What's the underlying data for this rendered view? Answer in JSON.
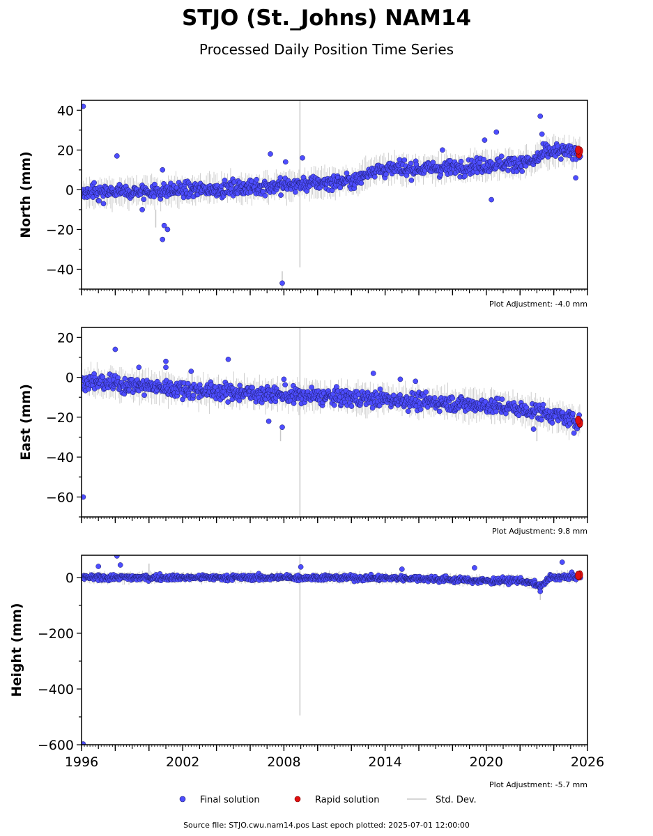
{
  "page": {
    "title": "STJO (St._Johns) NAM14",
    "subtitle": "Processed Daily Position Time Series",
    "footer": "Source file: STJO.cwu.nam14.pos  Last epoch plotted: 2025-07-01 12:00:00"
  },
  "legend": {
    "final_label": "Final solution",
    "rapid_label": "Rapid solution",
    "std_label": "Std. Dev."
  },
  "colors": {
    "final": "#4d4dff",
    "final_edge": "#1a1a66",
    "rapid": "#e01010",
    "std": "#c8c8c8"
  },
  "chart_data": [
    {
      "type": "scatter",
      "name": "north",
      "ylabel": "North (mm)",
      "xlim": [
        1996,
        2026
      ],
      "ylim": [
        -50,
        45
      ],
      "yticks": [
        -40,
        -20,
        0,
        20,
        40
      ],
      "adjustment": "Plot Adjustment: -4.0 mm",
      "trend": [
        [
          1996,
          -2
        ],
        [
          2003,
          0
        ],
        [
          2008,
          2
        ],
        [
          2012.4,
          5
        ],
        [
          2013.2,
          10
        ],
        [
          2018,
          11
        ],
        [
          2022.8,
          14
        ],
        [
          2023.5,
          19
        ],
        [
          2025.5,
          19
        ]
      ],
      "scatter": 2.6,
      "outliers": [
        [
          1996.1,
          42
        ],
        [
          1997.3,
          -7
        ],
        [
          1998.1,
          17
        ],
        [
          1999.6,
          -10
        ],
        [
          2000.8,
          -25
        ],
        [
          2000.9,
          -18
        ],
        [
          2001.1,
          -20
        ],
        [
          2000.8,
          10
        ],
        [
          2007.2,
          18
        ],
        [
          2007.9,
          -47
        ],
        [
          2008.1,
          14
        ],
        [
          2009.1,
          16
        ],
        [
          2017.4,
          20
        ],
        [
          2019.9,
          25
        ],
        [
          2020.6,
          29
        ],
        [
          2020.3,
          -5
        ],
        [
          2023.2,
          37
        ],
        [
          2023.3,
          28
        ],
        [
          2025.3,
          6
        ]
      ],
      "spikes": [
        [
          2008.95,
          -39,
          45
        ],
        [
          2000.4,
          -19,
          -10
        ],
        [
          2007.9,
          -41,
          -52
        ]
      ],
      "rapid": [
        [
          2025.5,
          18
        ],
        [
          2025.55,
          19.5
        ],
        [
          2025.45,
          20
        ]
      ]
    },
    {
      "type": "scatter",
      "name": "east",
      "ylabel": "East (mm)",
      "xlim": [
        1996,
        2026
      ],
      "ylim": [
        -70,
        25
      ],
      "yticks": [
        -60,
        -40,
        -20,
        0,
        20
      ],
      "adjustment": "Plot Adjustment: 9.8 mm",
      "trend": [
        [
          1996,
          -2
        ],
        [
          2002,
          -6
        ],
        [
          2008,
          -9
        ],
        [
          2014,
          -11
        ],
        [
          2020,
          -14
        ],
        [
          2023,
          -17
        ],
        [
          2025.5,
          -22
        ]
      ],
      "scatter": 2.8,
      "outliers": [
        [
          1996.1,
          -60
        ],
        [
          1998.0,
          14
        ],
        [
          1999.4,
          5
        ],
        [
          2001.0,
          8
        ],
        [
          2001.0,
          5
        ],
        [
          2002.5,
          3
        ],
        [
          2004.7,
          9
        ],
        [
          2007.1,
          -22
        ],
        [
          2007.9,
          -25
        ],
        [
          2008.0,
          -1
        ],
        [
          2014.9,
          -1
        ],
        [
          2013.3,
          2
        ],
        [
          2015.8,
          -2
        ],
        [
          2022.8,
          -26
        ],
        [
          2025.2,
          -28
        ]
      ],
      "spikes": [
        [
          2008.95,
          -70,
          25
        ],
        [
          2007.8,
          -32,
          -25
        ],
        [
          2023.0,
          -32,
          -22
        ]
      ],
      "rapid": [
        [
          2025.5,
          -22
        ],
        [
          2025.55,
          -23
        ],
        [
          2025.45,
          -21.5
        ]
      ]
    },
    {
      "type": "scatter",
      "name": "height",
      "ylabel": "Height (mm)",
      "xlim": [
        1996,
        2026
      ],
      "ylim": [
        -600,
        80
      ],
      "yticks": [
        -600,
        -400,
        -200,
        0
      ],
      "xticks": [
        "1996",
        "2002",
        "2008",
        "2014",
        "2020",
        "2026"
      ],
      "adjustment": "Plot Adjustment: -5.7 mm",
      "trend": [
        [
          1996,
          0
        ],
        [
          2010,
          0
        ],
        [
          2016,
          -3
        ],
        [
          2020,
          -12
        ],
        [
          2022,
          -10
        ],
        [
          2023.3,
          -30
        ],
        [
          2023.8,
          0
        ],
        [
          2025.5,
          3
        ]
      ],
      "scatter": 7,
      "outliers": [
        [
          1996.1,
          -600
        ],
        [
          1997.0,
          40
        ],
        [
          1998.1,
          80
        ],
        [
          1998.3,
          45
        ],
        [
          2009.0,
          38
        ],
        [
          2019.3,
          35
        ],
        [
          2023.2,
          -50
        ],
        [
          2024.5,
          55
        ],
        [
          2015.0,
          30
        ]
      ],
      "spikes": [
        [
          2008.95,
          -495,
          80
        ],
        [
          2023.2,
          -80,
          -20
        ],
        [
          2000.0,
          -15,
          50
        ]
      ],
      "rapid": [
        [
          2025.5,
          5
        ],
        [
          2025.55,
          10
        ],
        [
          2025.45,
          8
        ]
      ]
    }
  ]
}
